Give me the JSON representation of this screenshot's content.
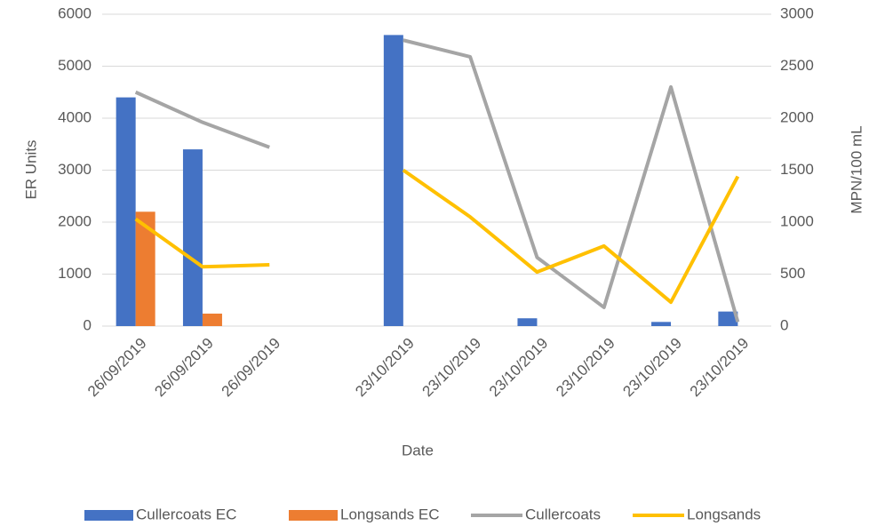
{
  "chart_data": {
    "type": "bar_line",
    "x_label": "Date",
    "y_label": "ER Units",
    "y2_label": "MPN/100 mL",
    "categories": [
      "26/09/2019",
      "26/09/2019",
      "26/09/2019",
      null,
      "23/10/2019",
      "23/10/2019",
      "23/10/2019",
      "23/10/2019",
      "23/10/2019",
      "23/10/2019"
    ],
    "series": [
      {
        "name": "Cullercoats EC",
        "type": "bar",
        "color": "#4472c4",
        "values": [
          4400,
          3400,
          null,
          null,
          5600,
          null,
          150,
          null,
          80,
          280
        ]
      },
      {
        "name": "Longsands EC",
        "type": "bar",
        "color": "#ed7d31",
        "values": [
          2200,
          240,
          null,
          null,
          null,
          null,
          null,
          null,
          null,
          null
        ]
      },
      {
        "name": "Cullercoats",
        "type": "line",
        "axis": "y2",
        "color": "#a5a5a5",
        "values": [
          2250,
          1960,
          1720,
          null,
          2750,
          2590,
          660,
          180,
          2300,
          40
        ]
      },
      {
        "name": "Longsands",
        "type": "line",
        "axis": "y2",
        "color": "#ffc000",
        "values": [
          1030,
          570,
          590,
          null,
          1500,
          1050,
          520,
          770,
          230,
          1440
        ]
      }
    ],
    "ylim": [
      0,
      6000
    ],
    "yticks": [
      0,
      1000,
      2000,
      3000,
      4000,
      5000,
      6000
    ],
    "y2lim": [
      0,
      3000
    ],
    "y2ticks": [
      0,
      500,
      1000,
      1500,
      2000,
      2500,
      3000
    ],
    "grid": true,
    "legend": "bottom"
  }
}
